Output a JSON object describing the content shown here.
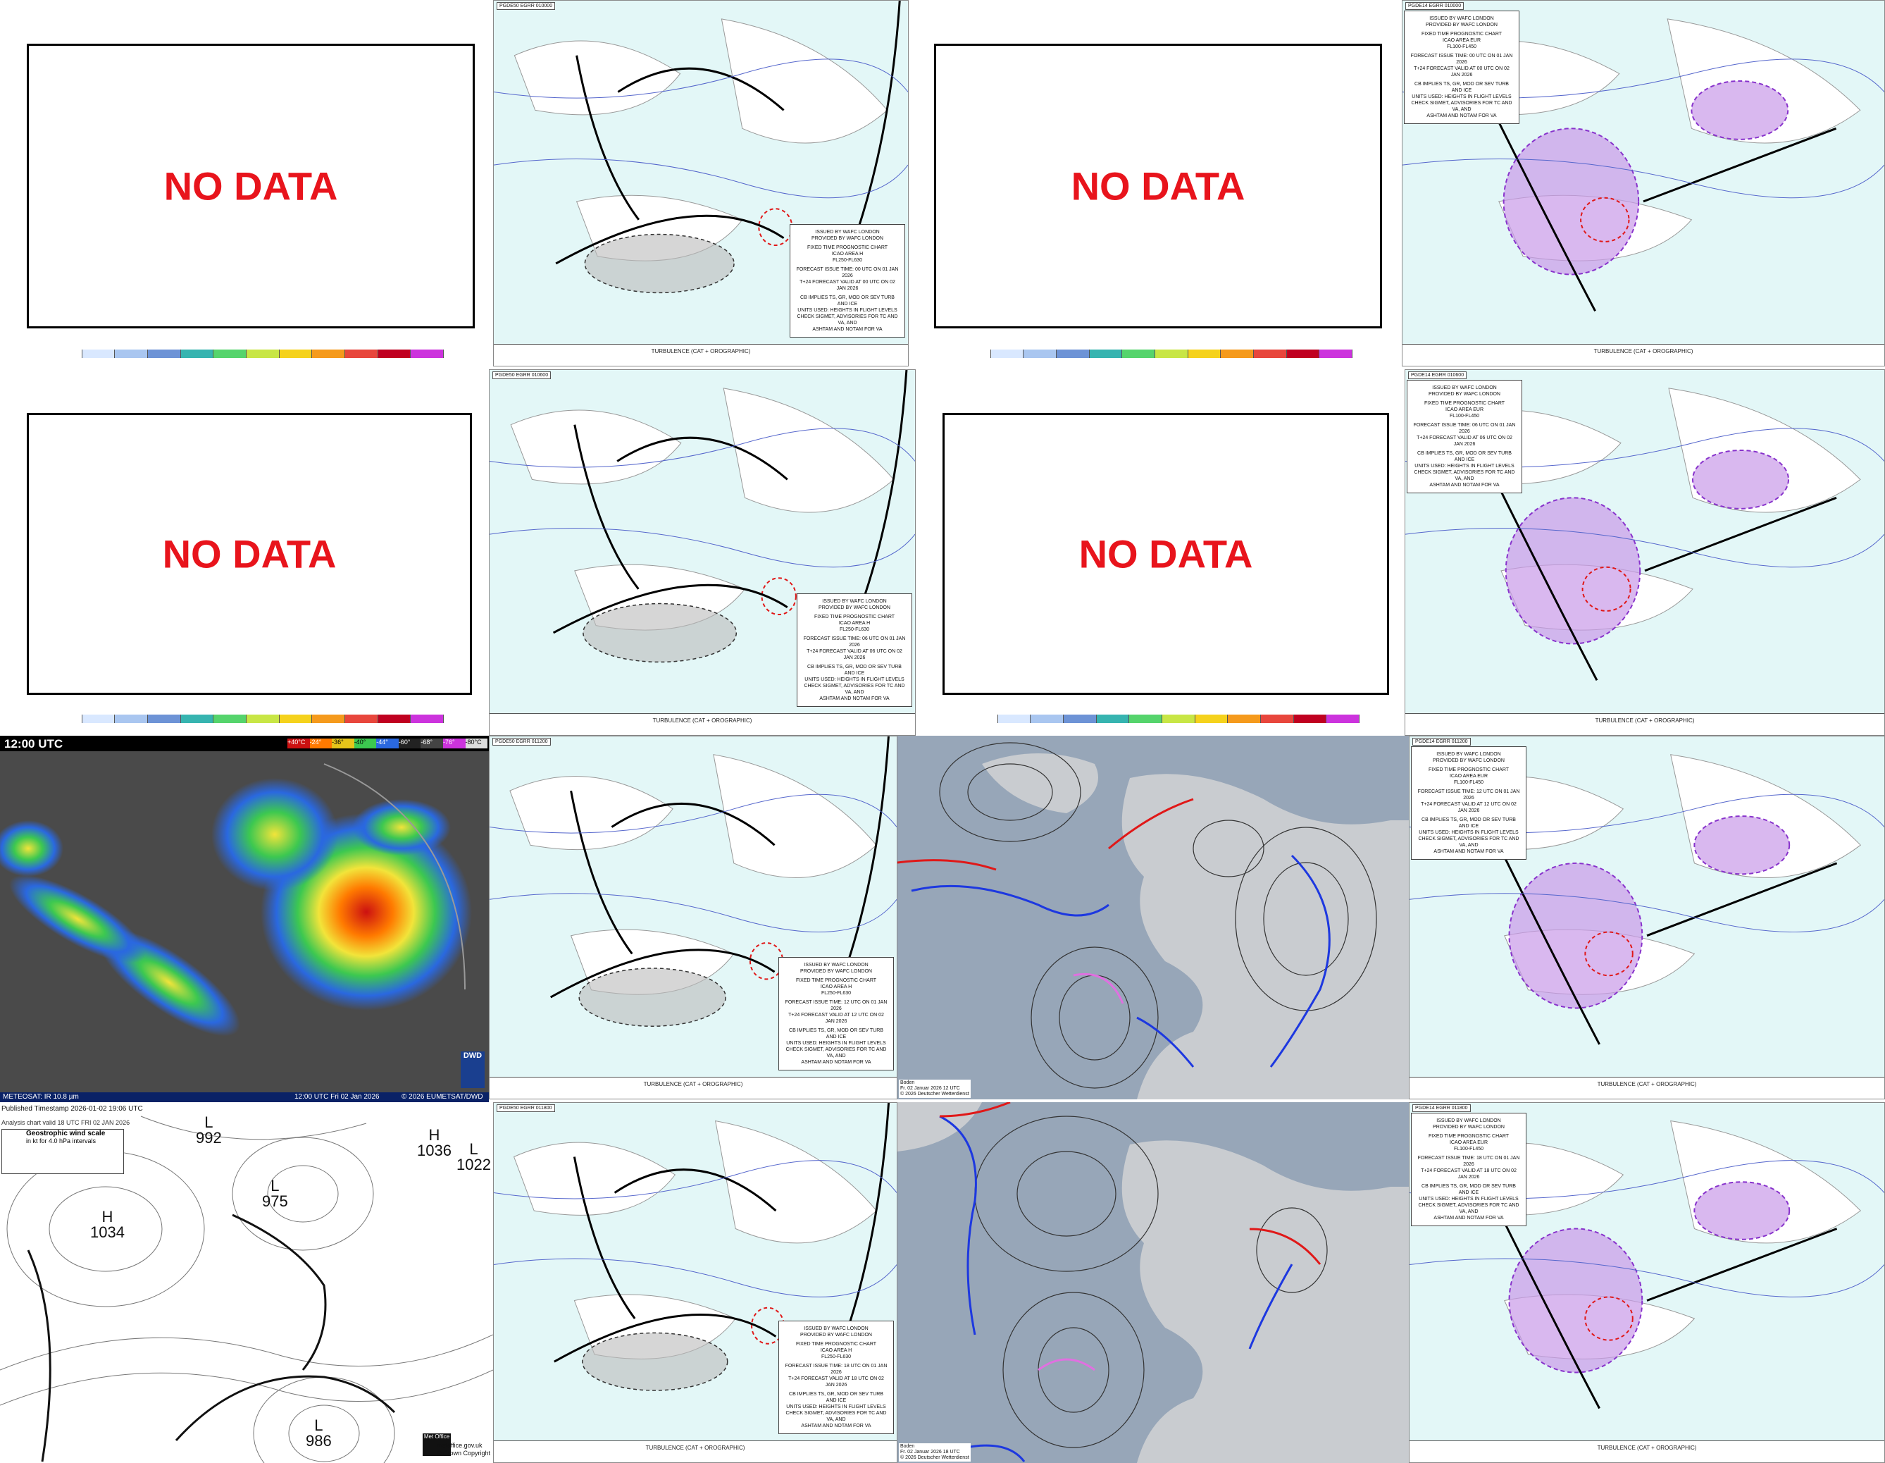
{
  "nodata_panels": [
    {
      "label": "NO DATA"
    },
    {
      "label": "NO DATA"
    },
    {
      "label": "NO DATA"
    },
    {
      "label": "NO DATA"
    }
  ],
  "colorbar_colors": [
    "#ffffff",
    "#d9e8ff",
    "#a9c6f0",
    "#6d93d6",
    "#36b4b0",
    "#55d46c",
    "#c8e645",
    "#f5d21c",
    "#f59a1c",
    "#e8463c",
    "#c00020",
    "#cc33dd"
  ],
  "sigwx_panels": [
    {
      "header": "PGDE50 EGRR 010000",
      "info_lines": [
        "ISSUED BY WAFC LONDON",
        "PROVIDED BY WAFC LONDON",
        "FIXED TIME PROGNOSTIC CHART",
        "ICAO AREA H",
        "FL250-FL630",
        "FORECAST ISSUE TIME: 00 UTC ON 01 JAN 2026",
        "T+24 FORECAST VALID AT 00 UTC ON 02 JAN 2026",
        "CB IMPLIES TS, GR, MOD OR SEV TURB AND ICE",
        "UNITS USED: HEIGHTS IN FLIGHT LEVELS",
        "CHECK SIGMET, ADVISORIES FOR TC AND VA, AND",
        "ASHTAM AND NOTAM FOR VA"
      ],
      "legend": "TURBULENCE (CAT + OROGRAPHIC)"
    },
    {
      "header": "PGDE14 EGRR 010000",
      "info_lines": [
        "ISSUED BY WAFC LONDON",
        "PROVIDED BY WAFC LONDON",
        "FIXED TIME PROGNOSTIC CHART",
        "ICAO AREA EUR",
        "FL100-FL450",
        "FORECAST ISSUE TIME: 00 UTC ON 01 JAN 2026",
        "T+24 FORECAST VALID AT 00 UTC ON 02 JAN 2026",
        "CB IMPLIES TS, GR, MOD OR SEV TURB AND ICE",
        "UNITS USED: HEIGHTS IN FLIGHT LEVELS",
        "CHECK SIGMET, ADVISORIES FOR TC AND VA, AND",
        "ASHTAM AND NOTAM FOR VA"
      ],
      "legend": "TURBULENCE (CAT + OROGRAPHIC)"
    },
    {
      "header": "PGDE50 EGRR 010600",
      "info_lines": [
        "ISSUED BY WAFC LONDON",
        "PROVIDED BY WAFC LONDON",
        "FIXED TIME PROGNOSTIC CHART",
        "ICAO AREA H",
        "FL250-FL630",
        "FORECAST ISSUE TIME: 06 UTC ON 01 JAN 2026",
        "T+24 FORECAST VALID AT 06 UTC ON 02 JAN 2026",
        "CB IMPLIES TS, GR, MOD OR SEV TURB AND ICE",
        "UNITS USED: HEIGHTS IN FLIGHT LEVELS",
        "CHECK SIGMET, ADVISORIES FOR TC AND VA, AND",
        "ASHTAM AND NOTAM FOR VA"
      ],
      "legend": "TURBULENCE (CAT + OROGRAPHIC)"
    },
    {
      "header": "PGDE14 EGRR 010600",
      "info_lines": [
        "ISSUED BY WAFC LONDON",
        "PROVIDED BY WAFC LONDON",
        "FIXED TIME PROGNOSTIC CHART",
        "ICAO AREA EUR",
        "FL100-FL450",
        "FORECAST ISSUE TIME: 06 UTC ON 01 JAN 2026",
        "T+24 FORECAST VALID AT 06 UTC ON 02 JAN 2026",
        "CB IMPLIES TS, GR, MOD OR SEV TURB AND ICE",
        "UNITS USED: HEIGHTS IN FLIGHT LEVELS",
        "CHECK SIGMET, ADVISORIES FOR TC AND VA, AND",
        "ASHTAM AND NOTAM FOR VA"
      ],
      "legend": "TURBULENCE (CAT + OROGRAPHIC)"
    },
    {
      "header": "PGDE50 EGRR 011200",
      "info_lines": [
        "ISSUED BY WAFC LONDON",
        "PROVIDED BY WAFC LONDON",
        "FIXED TIME PROGNOSTIC CHART",
        "ICAO AREA H",
        "FL250-FL630",
        "FORECAST ISSUE TIME: 12 UTC ON 01 JAN 2026",
        "T+24 FORECAST VALID AT 12 UTC ON 02 JAN 2026",
        "CB IMPLIES TS, GR, MOD OR SEV TURB AND ICE",
        "UNITS USED: HEIGHTS IN FLIGHT LEVELS",
        "CHECK SIGMET, ADVISORIES FOR TC AND VA, AND",
        "ASHTAM AND NOTAM FOR VA"
      ],
      "legend": "TURBULENCE (CAT + OROGRAPHIC)"
    },
    {
      "header": "PGDE14 EGRR 011200",
      "info_lines": [
        "ISSUED BY WAFC LONDON",
        "PROVIDED BY WAFC LONDON",
        "FIXED TIME PROGNOSTIC CHART",
        "ICAO AREA EUR",
        "FL100-FL450",
        "FORECAST ISSUE TIME: 12 UTC ON 01 JAN 2026",
        "T+24 FORECAST VALID AT 12 UTC ON 02 JAN 2026",
        "CB IMPLIES TS, GR, MOD OR SEV TURB AND ICE",
        "UNITS USED: HEIGHTS IN FLIGHT LEVELS",
        "CHECK SIGMET, ADVISORIES FOR TC AND VA, AND",
        "ASHTAM AND NOTAM FOR VA"
      ],
      "legend": "TURBULENCE (CAT + OROGRAPHIC)"
    },
    {
      "header": "PGDE50 EGRR 011800",
      "info_lines": [
        "ISSUED BY WAFC LONDON",
        "PROVIDED BY WAFC LONDON",
        "FIXED TIME PROGNOSTIC CHART",
        "ICAO AREA H",
        "FL250-FL630",
        "FORECAST ISSUE TIME: 18 UTC ON 01 JAN 2026",
        "T+24 FORECAST VALID AT 18 UTC ON 02 JAN 2026",
        "CB IMPLIES TS, GR, MOD OR SEV TURB AND ICE",
        "UNITS USED: HEIGHTS IN FLIGHT LEVELS",
        "CHECK SIGMET, ADVISORIES FOR TC AND VA, AND",
        "ASHTAM AND NOTAM FOR VA"
      ],
      "legend": "TURBULENCE (CAT + OROGRAPHIC)"
    },
    {
      "header": "PGDE14 EGRR 011800",
      "info_lines": [
        "ISSUED BY WAFC LONDON",
        "PROVIDED BY WAFC LONDON",
        "FIXED TIME PROGNOSTIC CHART",
        "ICAO AREA EUR",
        "FL100-FL450",
        "FORECAST ISSUE TIME: 18 UTC ON 01 JAN 2026",
        "T+24 FORECAST VALID AT 18 UTC ON 02 JAN 2026",
        "CB IMPLIES TS, GR, MOD OR SEV TURB AND ICE",
        "UNITS USED: HEIGHTS IN FLIGHT LEVELS",
        "CHECK SIGMET, ADVISORIES FOR TC AND VA, AND",
        "ASHTAM AND NOTAM FOR VA"
      ],
      "legend": "TURBULENCE (CAT + OROGRAPHIC)"
    }
  ],
  "satellite": {
    "time": "12:00 UTC",
    "channel": "METEOSAT: IR 10.8 µm",
    "valid": "12:00 UTC Fri 02 Jan 2026",
    "copyright": "© 2026 EUMETSAT/DWD",
    "scale_labels": [
      "+40°C",
      "-24°",
      "-36°",
      "-40°",
      "-44°",
      "-60°",
      "-68°",
      "-76°",
      "-80°C"
    ],
    "logo": "DWD"
  },
  "metoffice": {
    "published": "Published Timestamp   2026-01-02   19:06  UTC",
    "analysis": "Analysis chart  valid 18 UTC FRI 02  JAN 2026",
    "wind_title": "Geostrophic wind scale",
    "wind_sub": "in kt for 4.0 hPa intervals",
    "pressure_labels": [
      {
        "t": "L",
        "v": "992"
      },
      {
        "t": "H",
        "v": "1036"
      },
      {
        "t": "L",
        "v": "1022"
      },
      {
        "t": "H",
        "v": "1034"
      },
      {
        "t": "L",
        "v": "975"
      },
      {
        "t": "L",
        "v": "986"
      }
    ],
    "logo": "Met Office",
    "copyright_lines": [
      "metoffice.gov.uk",
      "© Crown Copyright"
    ]
  },
  "dwd_analyses": [
    {
      "caption_lines": [
        "Boden",
        "Fr. 02 Januar 2026 12 UTC",
        "© 2026 Deutscher Wetterdienst"
      ]
    },
    {
      "caption_lines": [
        "Boden",
        "Fr. 02 Januar 2026 18 UTC",
        "© 2026 Deutscher Wetterdienst"
      ]
    }
  ]
}
